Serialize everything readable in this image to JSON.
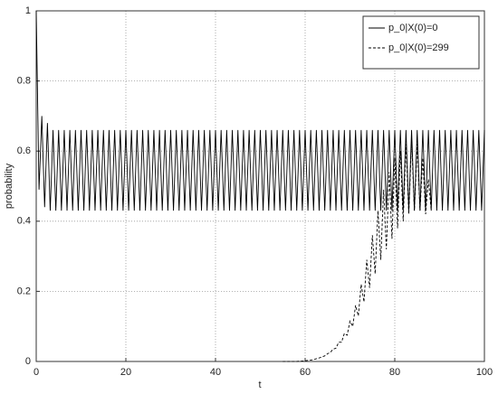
{
  "chart_data": {
    "type": "line",
    "x": [
      0,
      0.625,
      1.25,
      1.875,
      2.5,
      3.125,
      3.75,
      4.375,
      5,
      5.625,
      6.25,
      6.875,
      7.5,
      8.125,
      8.75,
      9.375,
      10,
      10.625,
      11.25,
      11.875,
      12.5,
      13.125,
      13.75,
      14.375,
      15,
      15.625,
      16.25,
      16.875,
      17.5,
      18.125,
      18.75,
      19.375,
      20,
      20.625,
      21.25,
      21.875,
      22.5,
      23.125,
      23.75,
      24.375,
      25,
      25.625,
      26.25,
      26.875,
      27.5,
      28.125,
      28.75,
      29.375,
      30,
      30.625,
      31.25,
      31.875,
      32.5,
      33.125,
      33.75,
      34.375,
      35,
      35.625,
      36.25,
      36.875,
      37.5,
      38.125,
      38.75,
      39.375,
      40,
      40.625,
      41.25,
      41.875,
      42.5,
      43.125,
      43.75,
      44.375,
      45,
      45.625,
      46.25,
      46.875,
      47.5,
      48.125,
      48.75,
      49.375,
      50,
      50.625,
      51.25,
      51.875,
      52.5,
      53.125,
      53.75,
      54.375,
      55,
      55.625,
      56.25,
      56.875,
      57.5,
      58.125,
      58.75,
      59.375,
      60,
      60.625,
      61.25,
      61.875,
      62.5,
      63.125,
      63.75,
      64.375,
      65,
      65.625,
      66.25,
      66.875,
      67.5,
      68.125,
      68.75,
      69.375,
      70,
      70.625,
      71.25,
      71.875,
      72.5,
      73.125,
      73.75,
      74.375,
      75,
      75.625,
      76.25,
      76.875,
      77.5,
      78.125,
      78.75,
      79.375,
      80,
      80.625,
      81.25,
      81.875,
      82.5,
      83.125,
      83.75,
      84.375,
      85,
      85.625,
      86.25,
      86.875,
      87.5,
      88.125,
      88.75,
      89.375,
      90,
      90.625,
      91.25,
      91.875,
      92.5,
      93.125,
      93.75,
      94.375,
      95,
      95.625,
      96.25,
      96.875,
      97.5,
      98.125,
      98.75,
      99.375,
      100
    ],
    "series": [
      {
        "name": "p_0|X(0)=0",
        "color": "#000000",
        "dash": false,
        "values": [
          1,
          0.49,
          0.7,
          0.44,
          0.68,
          0.43,
          0.66,
          0.43,
          0.66,
          0.43,
          0.66,
          0.43,
          0.66,
          0.43,
          0.66,
          0.43,
          0.66,
          0.43,
          0.66,
          0.43,
          0.66,
          0.43,
          0.66,
          0.43,
          0.66,
          0.43,
          0.66,
          0.43,
          0.66,
          0.43,
          0.66,
          0.43,
          0.66,
          0.43,
          0.66,
          0.43,
          0.66,
          0.43,
          0.66,
          0.43,
          0.66,
          0.43,
          0.66,
          0.43,
          0.66,
          0.43,
          0.66,
          0.43,
          0.66,
          0.43,
          0.66,
          0.43,
          0.66,
          0.43,
          0.66,
          0.43,
          0.66,
          0.43,
          0.66,
          0.43,
          0.66,
          0.43,
          0.66,
          0.43,
          0.66,
          0.43,
          0.66,
          0.43,
          0.66,
          0.43,
          0.66,
          0.43,
          0.66,
          0.43,
          0.66,
          0.43,
          0.66,
          0.43,
          0.66,
          0.43,
          0.66,
          0.43,
          0.66,
          0.43,
          0.66,
          0.43,
          0.66,
          0.43,
          0.66,
          0.43,
          0.66,
          0.43,
          0.66,
          0.43,
          0.66,
          0.43,
          0.66,
          0.43,
          0.66,
          0.43,
          0.66,
          0.43,
          0.66,
          0.43,
          0.66,
          0.43,
          0.66,
          0.43,
          0.66,
          0.43,
          0.66,
          0.43,
          0.66,
          0.43,
          0.66,
          0.43,
          0.66,
          0.43,
          0.66,
          0.43,
          0.66,
          0.43,
          0.66,
          0.43,
          0.66,
          0.43,
          0.66,
          0.43,
          0.66,
          0.43,
          0.66,
          0.43,
          0.66,
          0.43,
          0.66,
          0.43,
          0.66,
          0.43,
          0.66,
          0.43,
          0.66,
          0.43,
          0.66,
          0.43,
          0.66,
          0.43,
          0.66,
          0.43,
          0.66,
          0.43,
          0.66,
          0.43,
          0.66,
          0.43,
          0.66,
          0.43,
          0.66,
          0.43,
          0.66,
          0.43,
          0.66
        ]
      },
      {
        "name": "p_0|X(0)=299",
        "color": "#000000",
        "dash": true,
        "values": [
          null,
          null,
          null,
          null,
          null,
          null,
          null,
          null,
          null,
          null,
          null,
          null,
          null,
          null,
          null,
          null,
          null,
          null,
          null,
          null,
          null,
          null,
          null,
          null,
          null,
          null,
          null,
          null,
          null,
          null,
          null,
          null,
          null,
          null,
          null,
          null,
          null,
          null,
          null,
          null,
          null,
          null,
          null,
          null,
          null,
          null,
          null,
          null,
          null,
          null,
          null,
          null,
          null,
          null,
          null,
          null,
          null,
          null,
          null,
          null,
          null,
          null,
          null,
          null,
          null,
          null,
          null,
          null,
          null,
          null,
          null,
          null,
          null,
          null,
          null,
          null,
          null,
          null,
          null,
          null,
          null,
          null,
          null,
          null,
          null,
          null,
          null,
          null,
          0,
          0,
          0,
          0,
          0,
          0,
          0.001,
          0.001,
          0.002,
          0.003,
          0.004,
          0.005,
          0.008,
          0.01,
          0.013,
          0.016,
          0.022,
          0.026,
          0.035,
          0.038,
          0.055,
          0.055,
          0.08,
          0.075,
          0.115,
          0.1,
          0.16,
          0.13,
          0.22,
          0.17,
          0.29,
          0.21,
          0.36,
          0.25,
          0.43,
          0.29,
          0.49,
          0.32,
          0.54,
          0.35,
          0.58,
          0.38,
          0.6,
          0.4,
          0.62,
          0.42,
          0.63,
          0.43,
          0.62,
          0.43,
          0.58,
          0.42,
          0.52,
          0.43,
          null,
          null,
          null,
          null,
          null,
          null,
          null,
          null,
          null,
          null,
          null,
          null,
          null,
          null,
          null,
          null,
          null,
          null,
          null
        ]
      }
    ],
    "xlabel": "t",
    "ylabel": "probability",
    "xlim": [
      0,
      100
    ],
    "xticks": [
      0,
      20,
      40,
      60,
      80,
      100
    ],
    "ylim": [
      0,
      1
    ],
    "yticks": [
      0,
      0.2,
      0.4,
      0.6,
      0.8,
      1
    ],
    "grid": true,
    "legend": "upper right"
  }
}
